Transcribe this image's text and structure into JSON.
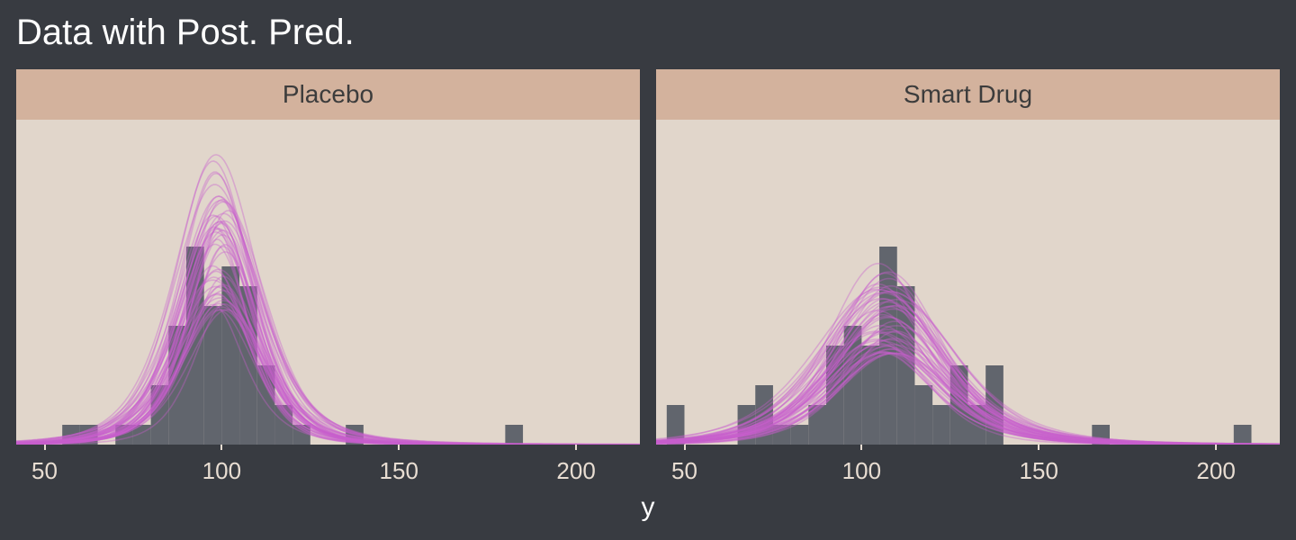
{
  "title": "Data with Post. Pred.",
  "chart_data": {
    "type": "histogram",
    "xlabel": "y",
    "xlim": [
      42,
      218
    ],
    "xticks": [
      50,
      100,
      150,
      200
    ],
    "bin_width": 5,
    "colors": {
      "bars": "#61656d",
      "curves": "#c95ecd",
      "panel": "#e1d6cb",
      "strip": "#d3b29d",
      "background": "#383b41"
    },
    "panels": [
      {
        "name": "Placebo",
        "bins": [
          {
            "x0": 55,
            "height": 1
          },
          {
            "x0": 60,
            "height": 1
          },
          {
            "x0": 70,
            "height": 1
          },
          {
            "x0": 75,
            "height": 1
          },
          {
            "x0": 80,
            "height": 3
          },
          {
            "x0": 85,
            "height": 6
          },
          {
            "x0": 90,
            "height": 10
          },
          {
            "x0": 95,
            "height": 7
          },
          {
            "x0": 100,
            "height": 9
          },
          {
            "x0": 105,
            "height": 8
          },
          {
            "x0": 110,
            "height": 4
          },
          {
            "x0": 115,
            "height": 2
          },
          {
            "x0": 120,
            "height": 1
          },
          {
            "x0": 135,
            "height": 1
          },
          {
            "x0": 180,
            "height": 1
          }
        ],
        "posterior_predictive": {
          "curve_count": 50,
          "mu_range": [
            97,
            102
          ],
          "sigma_range": [
            9,
            13
          ],
          "peak_range": [
            6.8,
            14.7
          ]
        }
      },
      {
        "name": "Smart Drug",
        "bins": [
          {
            "x0": 45,
            "height": 2
          },
          {
            "x0": 65,
            "height": 2
          },
          {
            "x0": 70,
            "height": 3
          },
          {
            "x0": 75,
            "height": 1
          },
          {
            "x0": 80,
            "height": 1
          },
          {
            "x0": 85,
            "height": 2
          },
          {
            "x0": 90,
            "height": 5
          },
          {
            "x0": 95,
            "height": 6
          },
          {
            "x0": 100,
            "height": 5
          },
          {
            "x0": 105,
            "height": 10
          },
          {
            "x0": 110,
            "height": 8
          },
          {
            "x0": 115,
            "height": 3
          },
          {
            "x0": 120,
            "height": 2
          },
          {
            "x0": 125,
            "height": 4
          },
          {
            "x0": 130,
            "height": 2
          },
          {
            "x0": 135,
            "height": 4
          },
          {
            "x0": 165,
            "height": 1
          },
          {
            "x0": 205,
            "height": 1
          }
        ],
        "posterior_predictive": {
          "curve_count": 50,
          "mu_range": [
            104,
            110
          ],
          "sigma_range": [
            14,
            19
          ],
          "peak_range": [
            4.6,
            9.2
          ]
        }
      }
    ]
  }
}
